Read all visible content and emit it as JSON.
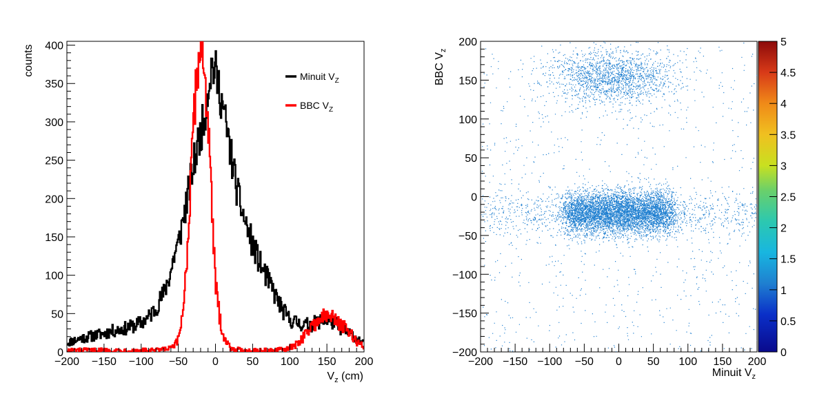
{
  "chart_data": [
    {
      "type": "line",
      "subtype": "histogram",
      "ylabel": "counts",
      "xlabel": "V",
      "xlabel_sub": "z",
      "xlabel_unit": " (cm)",
      "xlim": [
        -200,
        200
      ],
      "ylim": [
        0,
        405
      ],
      "xticks": [
        -200,
        -150,
        -100,
        -50,
        0,
        50,
        100,
        150,
        200
      ],
      "yticks": [
        0,
        50,
        100,
        150,
        200,
        250,
        300,
        350,
        400
      ],
      "legend_position": "top-right",
      "series": [
        {
          "name": "Minuit V",
          "name_sub": "Z",
          "color": "#000000",
          "x": [
            -200,
            -190,
            -180,
            -170,
            -160,
            -150,
            -140,
            -130,
            -120,
            -110,
            -100,
            -90,
            -80,
            -70,
            -60,
            -55,
            -50,
            -45,
            -40,
            -35,
            -30,
            -25,
            -20,
            -15,
            -10,
            -5,
            0,
            5,
            10,
            15,
            20,
            25,
            30,
            40,
            50,
            60,
            70,
            80,
            90,
            100,
            110,
            120,
            130,
            140,
            150,
            160,
            170,
            180,
            190,
            200
          ],
          "y": [
            12,
            15,
            18,
            20,
            22,
            24,
            27,
            29,
            31,
            34,
            38,
            45,
            58,
            75,
            105,
            128,
            140,
            165,
            190,
            215,
            240,
            265,
            285,
            305,
            345,
            375,
            365,
            345,
            320,
            290,
            262,
            235,
            205,
            170,
            140,
            115,
            95,
            75,
            55,
            42,
            38,
            35,
            36,
            40,
            42,
            38,
            30,
            25,
            18,
            10
          ]
        },
        {
          "name": "BBC V",
          "name_sub": "Z",
          "color": "#ff0000",
          "x": [
            -200,
            -150,
            -100,
            -80,
            -70,
            -60,
            -55,
            -50,
            -45,
            -40,
            -35,
            -30,
            -25,
            -20,
            -15,
            -10,
            -5,
            0,
            5,
            10,
            15,
            20,
            25,
            30,
            40,
            50,
            60,
            70,
            80,
            90,
            100,
            110,
            120,
            130,
            140,
            150,
            160,
            170,
            180,
            190,
            200
          ],
          "y": [
            2,
            2,
            2,
            2,
            3,
            5,
            8,
            15,
            45,
            100,
            180,
            290,
            360,
            405,
            370,
            300,
            190,
            90,
            50,
            25,
            12,
            6,
            4,
            3,
            2,
            2,
            2,
            2,
            2,
            3,
            5,
            10,
            22,
            33,
            43,
            47,
            44,
            35,
            25,
            14,
            6
          ]
        }
      ]
    },
    {
      "type": "heatmap",
      "subtype": "scatter-density",
      "ylabel": "BBC V",
      "ylabel_sub": "z",
      "xlabel": "Minuit V",
      "xlabel_sub": "z",
      "xlim": [
        -200,
        200
      ],
      "ylim": [
        -200,
        200
      ],
      "xticks": [
        -200,
        -150,
        -100,
        -50,
        0,
        50,
        100,
        150,
        200
      ],
      "yticks": [
        -200,
        -150,
        -100,
        -50,
        0,
        50,
        100,
        150,
        200
      ],
      "colorbar": {
        "min": 0,
        "max": 5,
        "ticks": [
          "0",
          "0.5",
          "1",
          "1.5",
          "2",
          "2.5",
          "3",
          "3.5",
          "4",
          "4.5",
          "5"
        ]
      },
      "point_color": "#1f7fd0",
      "clusters": [
        {
          "name": "",
          "x_center": 0,
          "x_width": 75,
          "y_center": -20,
          "y_width": 14,
          "weight": 0.55
        },
        {
          "name": "",
          "x_center": 0,
          "x_width": 190,
          "y_center": -22,
          "y_width": 14,
          "weight": 0.17
        },
        {
          "name": "",
          "x_center": -10,
          "x_width": 45,
          "y_center": 155,
          "y_width": 18,
          "weight": 0.18
        },
        {
          "name": "",
          "x_center": 0,
          "x_width": 200,
          "y_center": 0,
          "y_width": 200,
          "weight": 0.1
        }
      ]
    }
  ]
}
